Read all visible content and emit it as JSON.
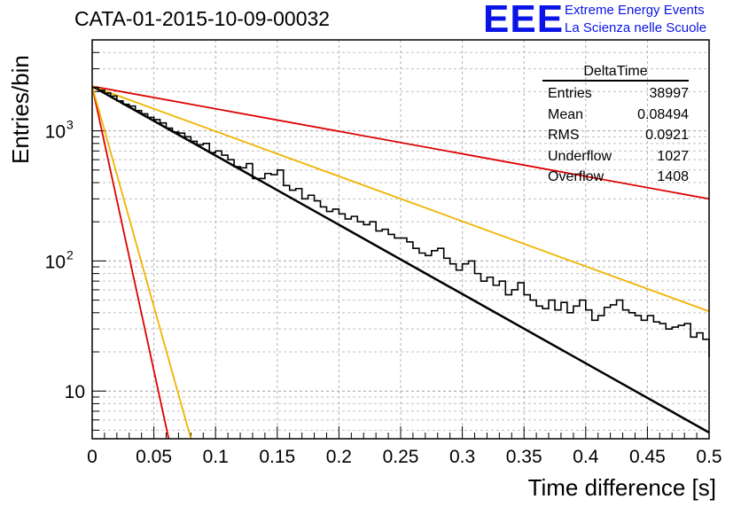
{
  "title": "CATA-01-2015-10-09-00032",
  "logo": {
    "text": "EEE",
    "line1": "Extreme Energy Events",
    "line2": "La Scienza nelle Scuole",
    "color": "#0a14e6"
  },
  "axes": {
    "ylabel": "Entries/bin",
    "xlabel": "Time difference [s]"
  },
  "stats_box": {
    "name": "DeltaTime",
    "rows": [
      {
        "label": "Entries",
        "value": "38997"
      },
      {
        "label": "Mean",
        "value": "0.08494"
      },
      {
        "label": "RMS",
        "value": "0.0921"
      },
      {
        "label": "Underflow",
        "value": "1027"
      },
      {
        "label": "Overflow",
        "value": "1408"
      }
    ]
  },
  "chart_data": {
    "type": "line",
    "x_ticks": [
      "0",
      "0.05",
      "0.1",
      "0.15",
      "0.2",
      "0.25",
      "0.3",
      "0.35",
      "0.4",
      "0.45",
      "0.5"
    ],
    "y_ticks": [
      "10",
      "10^2",
      "10^3"
    ],
    "xlim": [
      0,
      0.5
    ],
    "ylim": [
      4.3,
      5000
    ],
    "y_scale": "log",
    "grid": true,
    "histogram": {
      "color": "#000000",
      "bin_width": 0.005,
      "values": [
        2150,
        2050,
        1950,
        1850,
        1700,
        1600,
        1550,
        1430,
        1350,
        1270,
        1220,
        1150,
        1050,
        980,
        960,
        900,
        830,
        780,
        800,
        680,
        700,
        650,
        600,
        530,
        520,
        560,
        430,
        430,
        470,
        460,
        500,
        380,
        350,
        360,
        300,
        320,
        290,
        260,
        240,
        250,
        230,
        210,
        220,
        200,
        190,
        200,
        170,
        175,
        160,
        150,
        150,
        140,
        125,
        115,
        110,
        120,
        125,
        105,
        95,
        85,
        95,
        100,
        80,
        70,
        75,
        65,
        70,
        55,
        60,
        68,
        55,
        50,
        45,
        43,
        50,
        42,
        48,
        40,
        45,
        50,
        42,
        35,
        38,
        44,
        46,
        50,
        42,
        40,
        38,
        35,
        38,
        34,
        33,
        30,
        31,
        32,
        33,
        26,
        28,
        25
      ]
    },
    "series": [
      {
        "color": "#000000",
        "x": [
          0,
          0.5
        ],
        "y": [
          2200,
          4.8
        ]
      },
      {
        "color": "#dd0000",
        "x": [
          0,
          0.5
        ],
        "y": [
          2200,
          300
        ]
      },
      {
        "color": "#f0b400",
        "x": [
          0,
          0.5
        ],
        "y": [
          2200,
          41
        ]
      },
      {
        "color": "#dd0000",
        "x": [
          0,
          0.062
        ],
        "y": [
          2200,
          4.3
        ]
      },
      {
        "color": "#f0b400",
        "x": [
          0,
          0.08
        ],
        "y": [
          2200,
          4.3
        ]
      }
    ]
  }
}
